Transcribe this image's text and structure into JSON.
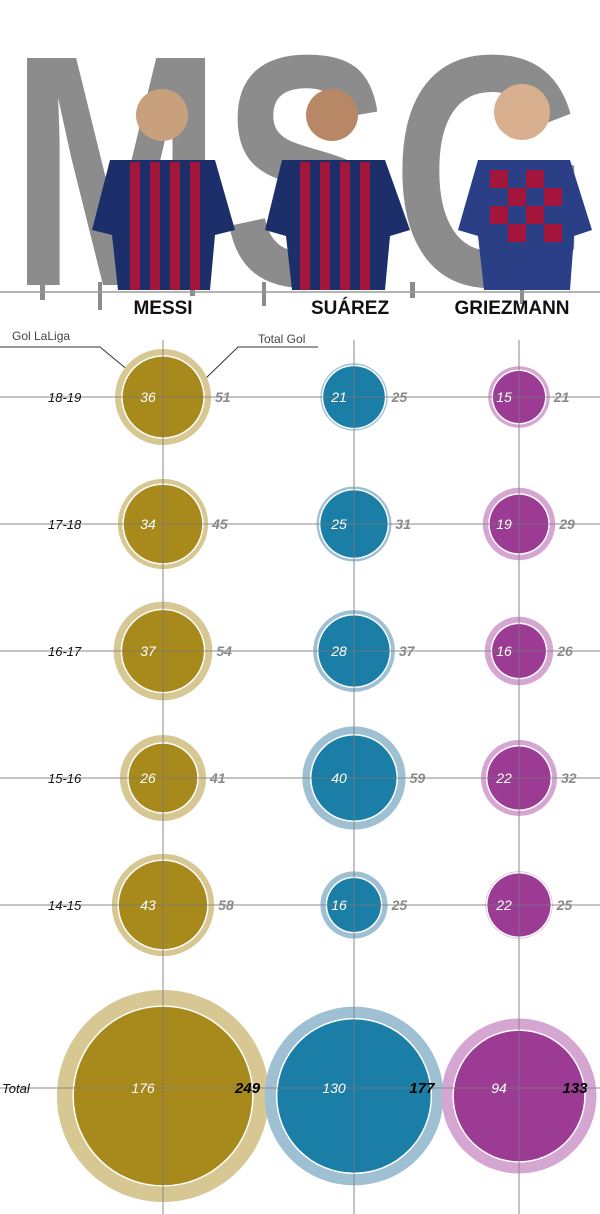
{
  "header": {
    "logo_text": "MSG",
    "players": [
      "MESSI",
      "SUÁREZ",
      "GRIEZMANN"
    ]
  },
  "legend": {
    "inner_label": "Gol LaLiga",
    "outer_label": "Total Gol"
  },
  "chart_data": {
    "type": "bubble",
    "title": "",
    "categories": [
      "18-19",
      "17-18",
      "16-17",
      "15-16",
      "14-15",
      "Total"
    ],
    "series": [
      {
        "name": "MESSI",
        "color_inner": "#a8891b",
        "color_outer": "#d6c793",
        "laliga_goals": [
          36,
          34,
          37,
          26,
          43,
          176
        ],
        "total_goals": [
          51,
          45,
          54,
          41,
          58,
          249
        ]
      },
      {
        "name": "SUÁREZ",
        "color_inner": "#1b7ea6",
        "color_outer": "#9fc0d3",
        "laliga_goals": [
          21,
          25,
          28,
          40,
          16,
          130
        ],
        "total_goals": [
          25,
          31,
          37,
          59,
          25,
          177
        ]
      },
      {
        "name": "GRIEZMANN",
        "color_inner": "#9b3b94",
        "color_outer": "#d6a6d3",
        "laliga_goals": [
          15,
          19,
          16,
          22,
          22,
          94
        ],
        "total_goals": [
          21,
          29,
          26,
          32,
          25,
          133
        ]
      }
    ]
  }
}
